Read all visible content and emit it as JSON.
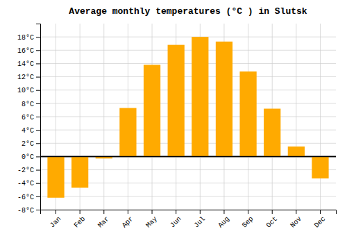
{
  "chart_data": {
    "type": "bar",
    "title": "Average monthly temperatures (°C ) in Slutsk",
    "categories": [
      "Jan",
      "Feb",
      "Mar",
      "Apr",
      "May",
      "Jun",
      "Jul",
      "Aug",
      "Sep",
      "Oct",
      "Nov",
      "Dec"
    ],
    "values": [
      -6.2,
      -4.7,
      -0.3,
      7.3,
      13.8,
      16.8,
      18.0,
      17.3,
      12.8,
      7.2,
      1.5,
      -3.3
    ],
    "color": "#FFAA00",
    "ylim": [
      -8,
      20
    ],
    "yticks": [
      {
        "value": -8,
        "label": "-8°C"
      },
      {
        "value": -6,
        "label": "-6°C"
      },
      {
        "value": -4,
        "label": "-4°C"
      },
      {
        "value": -2,
        "label": "-2°C"
      },
      {
        "value": 0,
        "label": "0°C"
      },
      {
        "value": 2,
        "label": "2°C"
      },
      {
        "value": 4,
        "label": "4°C"
      },
      {
        "value": 6,
        "label": "6°C"
      },
      {
        "value": 8,
        "label": "8°C"
      },
      {
        "value": 10,
        "label": "10°C"
      },
      {
        "value": 12,
        "label": "12°C"
      },
      {
        "value": 14,
        "label": "14°C"
      },
      {
        "value": 16,
        "label": "16°C"
      },
      {
        "value": 18,
        "label": "18°C"
      }
    ],
    "grid": true
  }
}
